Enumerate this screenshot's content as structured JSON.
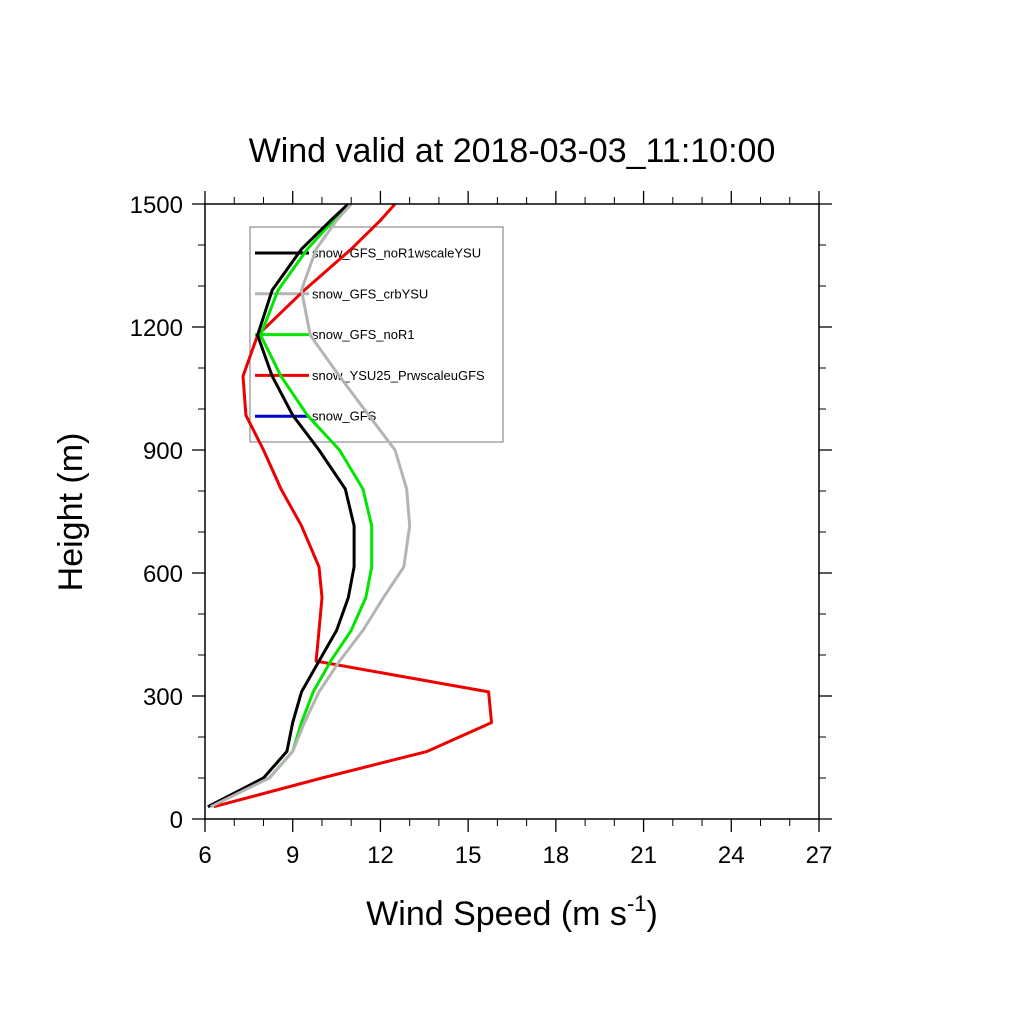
{
  "chart_data": {
    "type": "line",
    "title": "Wind valid at 2018-03-03_11:10:00",
    "xlabel": "Wind Speed (m s",
    "xlabel_sup": "-1",
    "xlabel_end": ")",
    "ylabel": "Height (m)",
    "xlim": [
      6,
      27
    ],
    "ylim": [
      0,
      1500
    ],
    "xticks": [
      6,
      9,
      12,
      15,
      18,
      21,
      24,
      27
    ],
    "yticks": [
      0,
      300,
      600,
      900,
      1200,
      1500
    ],
    "xticks_minor": [
      7,
      8,
      10,
      11,
      13,
      14,
      16,
      17,
      19,
      20,
      22,
      23,
      25,
      26
    ],
    "yticks_minor": [
      100,
      200,
      400,
      500,
      700,
      800,
      1000,
      1100,
      1300,
      1400
    ],
    "legend_position": "top-left",
    "series": [
      {
        "name": "snow_GFS_noR1wscaleYSU",
        "color": "#000000",
        "points": [
          [
            6.1,
            30
          ],
          [
            8.0,
            100
          ],
          [
            8.8,
            165
          ],
          [
            9.0,
            235
          ],
          [
            9.3,
            310
          ],
          [
            9.9,
            385
          ],
          [
            10.5,
            460
          ],
          [
            10.9,
            540
          ],
          [
            11.1,
            615
          ],
          [
            11.1,
            715
          ],
          [
            10.8,
            805
          ],
          [
            9.9,
            900
          ],
          [
            9.0,
            985
          ],
          [
            8.3,
            1080
          ],
          [
            7.8,
            1180
          ],
          [
            8.3,
            1290
          ],
          [
            9.3,
            1390
          ],
          [
            10.3,
            1460
          ],
          [
            10.9,
            1500
          ]
        ]
      },
      {
        "name": "snow_GFS_crbYSU",
        "color": "#b4b4b4",
        "points": [
          [
            6.2,
            30
          ],
          [
            8.2,
            100
          ],
          [
            9.0,
            165
          ],
          [
            9.4,
            235
          ],
          [
            9.9,
            310
          ],
          [
            10.6,
            385
          ],
          [
            11.4,
            460
          ],
          [
            12.1,
            540
          ],
          [
            12.8,
            615
          ],
          [
            13.0,
            715
          ],
          [
            12.9,
            805
          ],
          [
            12.5,
            900
          ],
          [
            11.6,
            985
          ],
          [
            10.6,
            1080
          ],
          [
            9.6,
            1180
          ],
          [
            9.3,
            1290
          ],
          [
            9.8,
            1390
          ],
          [
            10.5,
            1460
          ],
          [
            11.0,
            1500
          ]
        ]
      },
      {
        "name": "snow_GFS_noR1",
        "color": "#00e600",
        "points": [
          [
            6.1,
            30
          ],
          [
            8.2,
            100
          ],
          [
            9.0,
            165
          ],
          [
            9.3,
            235
          ],
          [
            9.7,
            310
          ],
          [
            10.3,
            385
          ],
          [
            11.0,
            460
          ],
          [
            11.5,
            540
          ],
          [
            11.7,
            615
          ],
          [
            11.7,
            715
          ],
          [
            11.4,
            805
          ],
          [
            10.6,
            900
          ],
          [
            9.5,
            985
          ],
          [
            8.6,
            1080
          ],
          [
            7.9,
            1180
          ],
          [
            8.5,
            1290
          ],
          [
            9.5,
            1390
          ],
          [
            10.4,
            1460
          ],
          [
            11.0,
            1500
          ]
        ]
      },
      {
        "name": "snow_YSU25_PrwscaleuGFS",
        "color": "#ee0000",
        "points": [
          [
            6.3,
            30
          ],
          [
            10.0,
            100
          ],
          [
            13.6,
            165
          ],
          [
            15.8,
            235
          ],
          [
            15.7,
            310
          ],
          [
            9.8,
            385
          ],
          [
            9.9,
            460
          ],
          [
            10.0,
            540
          ],
          [
            9.9,
            615
          ],
          [
            9.3,
            715
          ],
          [
            8.6,
            805
          ],
          [
            8.0,
            900
          ],
          [
            7.4,
            985
          ],
          [
            7.3,
            1080
          ],
          [
            7.8,
            1180
          ],
          [
            9.4,
            1290
          ],
          [
            11.0,
            1390
          ],
          [
            12.0,
            1460
          ],
          [
            12.5,
            1500
          ]
        ]
      },
      {
        "name": "snow_GFS",
        "color": "#0000cc",
        "points": [
          [
            6.2,
            30
          ],
          [
            8.2,
            100
          ],
          [
            9.0,
            165
          ],
          [
            9.4,
            235
          ],
          [
            9.9,
            310
          ],
          [
            10.6,
            385
          ],
          [
            11.4,
            460
          ],
          [
            12.1,
            540
          ],
          [
            12.8,
            615
          ],
          [
            13.0,
            715
          ],
          [
            12.9,
            805
          ],
          [
            12.5,
            900
          ],
          [
            11.6,
            985
          ],
          [
            10.6,
            1080
          ],
          [
            9.6,
            1180
          ],
          [
            9.3,
            1290
          ],
          [
            9.8,
            1390
          ],
          [
            10.5,
            1460
          ],
          [
            11.0,
            1500
          ]
        ]
      }
    ]
  }
}
